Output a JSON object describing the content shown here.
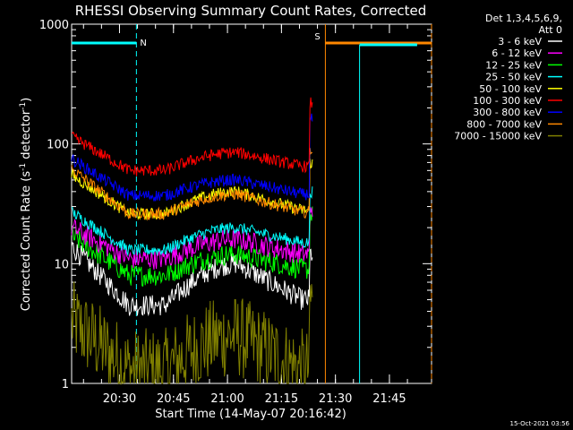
{
  "chart_data": {
    "type": "line",
    "title": "RHESSI Observing Summary Count Rates, Corrected",
    "xlabel": "Start Time (14-May-07 20:16:42)",
    "ylabel_main": "Corrected Count Rate (s",
    "ylabel_sup1": "-1",
    "ylabel_mid": " detector",
    "ylabel_sup2": "-1",
    "ylabel_end": ")",
    "yscale": "log",
    "ylim": [
      1,
      1000
    ],
    "xlim_minutes": [
      0,
      100
    ],
    "xticks": [
      {
        "minute": 13.3,
        "label": "20:30"
      },
      {
        "minute": 28.3,
        "label": "20:45"
      },
      {
        "minute": 43.3,
        "label": "21:00"
      },
      {
        "minute": 58.3,
        "label": "21:15"
      },
      {
        "minute": 73.3,
        "label": "21:30"
      },
      {
        "minute": 88.3,
        "label": "21:45"
      }
    ],
    "yticks": [
      {
        "value": 1,
        "label": "1"
      },
      {
        "value": 10,
        "label": "10"
      },
      {
        "value": 100,
        "label": "100"
      },
      {
        "value": 1000,
        "label": "1000"
      }
    ],
    "legend_header": [
      "Det 1,3,4,5,6,9,",
      "Att 0"
    ],
    "legend_position": "top-right",
    "series": [
      {
        "name": "3 - 6 keV",
        "color": "#ffffff",
        "start": 14,
        "trough": 4.5,
        "bump": 10,
        "preend": 5,
        "peak": 12
      },
      {
        "name": "6 - 12 keV",
        "color": "#ff00ff",
        "start": 20,
        "trough": 11,
        "bump": 16,
        "preend": 12,
        "peak": 30
      },
      {
        "name": "12 - 25 keV",
        "color": "#00ff00",
        "start": 17,
        "trough": 8,
        "bump": 12,
        "preend": 9,
        "peak": 25
      },
      {
        "name": "25 - 50 keV",
        "color": "#00ffff",
        "start": 27,
        "trough": 13,
        "bump": 20,
        "preend": 15,
        "peak": 40
      },
      {
        "name": "50 - 100 keV",
        "color": "#ffff00",
        "start": 55,
        "trough": 26,
        "bump": 40,
        "preend": 28,
        "peak": 70
      },
      {
        "name": "100 - 300 keV",
        "color": "#ff0000",
        "start": 115,
        "trough": 60,
        "bump": 85,
        "preend": 65,
        "peak": 220
      },
      {
        "name": "300 - 800 keV",
        "color": "#0000ff",
        "start": 75,
        "trough": 37,
        "bump": 50,
        "preend": 38,
        "peak": 160
      },
      {
        "name": "800 - 7000 keV",
        "color": "#ff8800",
        "start": 62,
        "trough": 26,
        "bump": 38,
        "preend": 27,
        "peak": 90
      },
      {
        "name": "7000 - 15000 keV",
        "color": "#808000",
        "start": 3.3,
        "trough": 1.3,
        "bump": 2.5,
        "preend": 1.3,
        "peak": 5
      }
    ],
    "flags": [
      {
        "label": "N",
        "color": "#00ffff",
        "start_minute": 0,
        "end_minute": 18
      },
      {
        "label": "S",
        "color": "#ff8800",
        "start_minute": 70.5,
        "end_minute": 100
      }
    ],
    "eclipse_bars": [
      {
        "start_minute": 80,
        "end_minute": 96
      }
    ],
    "timestamp": "15-Oct-2021 03:56"
  }
}
